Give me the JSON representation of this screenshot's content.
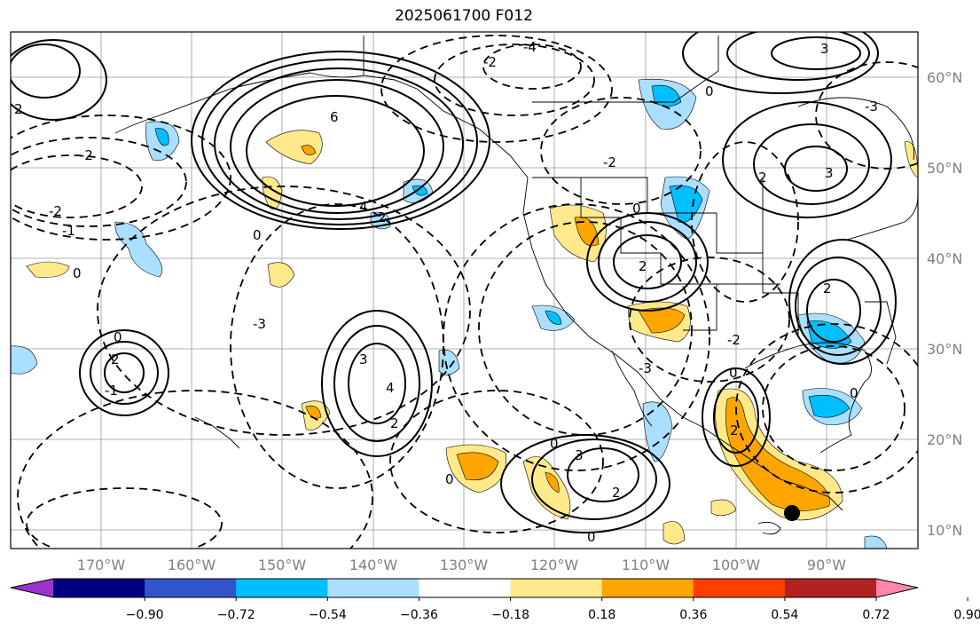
{
  "title": "2025061700 F012",
  "map": {
    "lon_labels": [
      "170°W",
      "160°W",
      "150°W",
      "140°W",
      "130°W",
      "120°W",
      "110°W",
      "100°W",
      "90°W"
    ],
    "lat_labels": [
      "60°N",
      "50°N",
      "40°N",
      "30°N",
      "20°N",
      "10°N"
    ],
    "contour_labels": [
      "6",
      "4",
      "2",
      "0",
      "-2",
      "-4",
      "-1",
      "-3",
      "0",
      "2",
      "3",
      "4",
      "2",
      "0",
      "-2",
      "-1",
      "0",
      "2",
      "3",
      "-3",
      "0",
      "-2",
      "0",
      "3",
      "2",
      "2",
      "-2",
      "0",
      "2",
      "0",
      "2",
      "3",
      "0",
      "-2",
      "2",
      "0",
      "-3"
    ],
    "marker": "storm-position-dot"
  },
  "colorbar": {
    "colors": [
      "#9933cc",
      "#000080",
      "#3355cc",
      "#00bfff",
      "#aadfff",
      "#ffffff",
      "#ffe98a",
      "#ffa500",
      "#ff3f00",
      "#b22222",
      "#ff88aa"
    ],
    "ticks": [
      "−0.90",
      "−0.72",
      "−0.54",
      "−0.36",
      "−0.18",
      "0.18",
      "0.36",
      "0.54",
      "0.72",
      "0.90"
    ]
  }
}
